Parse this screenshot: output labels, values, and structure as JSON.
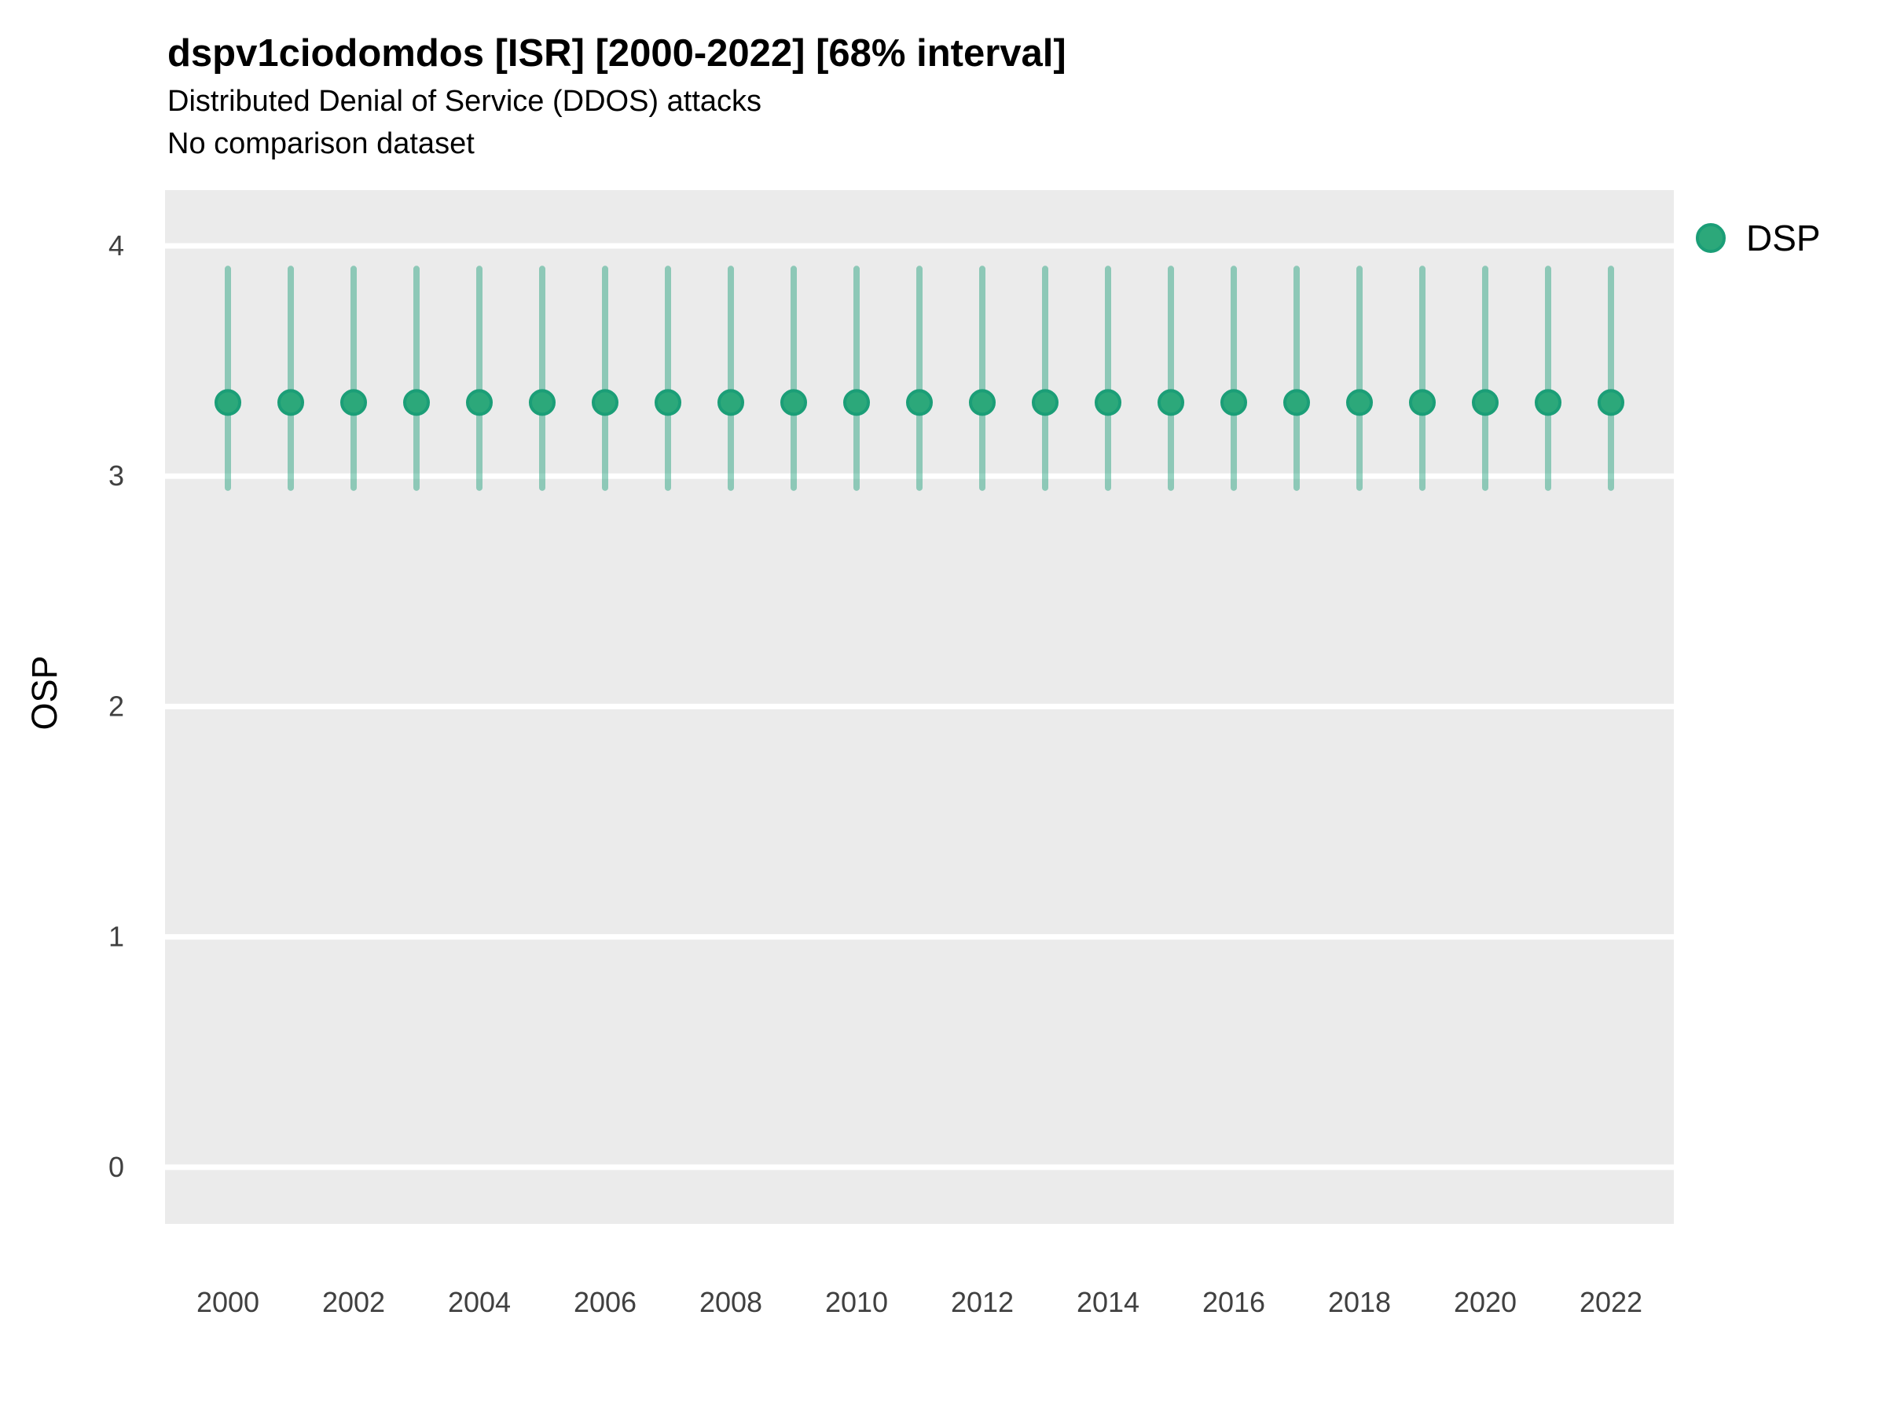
{
  "chart_data": {
    "type": "scatter",
    "variant": "pointrange",
    "title": "dspv1ciodomdos [ISR] [2000-2022] [68% interval]",
    "subtitle": "Distributed Denial of Service (DDOS) attacks",
    "note": "No comparison dataset",
    "xlabel": "",
    "ylabel": "OSP",
    "xlim": [
      1999,
      2023
    ],
    "ylim": [
      -0.246,
      4.242
    ],
    "x_ticks": [
      2000,
      2002,
      2004,
      2006,
      2008,
      2010,
      2012,
      2014,
      2016,
      2018,
      2020,
      2022
    ],
    "y_ticks": [
      0,
      1,
      2,
      3,
      4
    ],
    "grid": "major-horizontal",
    "legend_position": "right-top",
    "x": [
      2000,
      2001,
      2002,
      2003,
      2004,
      2005,
      2006,
      2007,
      2008,
      2009,
      2010,
      2011,
      2012,
      2013,
      2014,
      2015,
      2016,
      2017,
      2018,
      2019,
      2020,
      2021,
      2022
    ],
    "series": [
      {
        "name": "DSP",
        "y": [
          3.32,
          3.32,
          3.32,
          3.32,
          3.32,
          3.32,
          3.32,
          3.32,
          3.32,
          3.32,
          3.32,
          3.32,
          3.32,
          3.32,
          3.32,
          3.32,
          3.32,
          3.32,
          3.32,
          3.32,
          3.32,
          3.32,
          3.32
        ],
        "ymin": [
          2.95,
          2.95,
          2.95,
          2.95,
          2.95,
          2.95,
          2.95,
          2.95,
          2.95,
          2.95,
          2.95,
          2.95,
          2.95,
          2.95,
          2.95,
          2.95,
          2.95,
          2.95,
          2.95,
          2.95,
          2.95,
          2.95,
          2.95
        ],
        "ymax": [
          3.9,
          3.9,
          3.9,
          3.9,
          3.9,
          3.9,
          3.9,
          3.9,
          3.9,
          3.9,
          3.9,
          3.9,
          3.9,
          3.9,
          3.9,
          3.9,
          3.9,
          3.9,
          3.9,
          3.9,
          3.9,
          3.9,
          3.9
        ]
      }
    ],
    "legend": [
      {
        "label": "DSP",
        "color": "#1b9e77"
      }
    ],
    "colors": {
      "point_fill": "#2ca87a",
      "point_stroke": "#1b9e77",
      "interval_rgba": "rgba(27,158,119,0.45)",
      "panel_bg": "#ebebeb",
      "gridline": "#ffffff",
      "tick_text": "#404040"
    }
  }
}
